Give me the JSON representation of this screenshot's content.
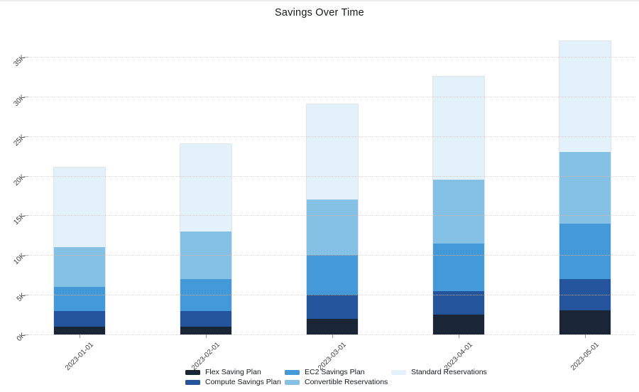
{
  "title": "Savings Over Time",
  "chart_data": {
    "type": "bar",
    "stacked": true,
    "title": "Savings Over Time",
    "categories": [
      "2023-01-01",
      "2023-02-01",
      "2023-03-01",
      "2023-04-01",
      "2023-05-01"
    ],
    "series": [
      {
        "name": "Flex Saving Plan",
        "color": "#1a2536",
        "values": [
          1000,
          1000,
          2000,
          2500,
          3000
        ]
      },
      {
        "name": "Compute Savings Plan",
        "color": "#24549c",
        "values": [
          2000,
          2000,
          3000,
          3000,
          4000
        ]
      },
      {
        "name": "EC2 Savings Plan",
        "color": "#449ad8",
        "values": [
          3000,
          4000,
          5000,
          6000,
          7000
        ]
      },
      {
        "name": "Convertible Reservations",
        "color": "#85c1e4",
        "values": [
          5000,
          6000,
          7000,
          8000,
          9000
        ]
      },
      {
        "name": "Standard Reservations",
        "color": "#e3f1fb",
        "values": [
          10000,
          11000,
          12000,
          13000,
          14000
        ]
      }
    ],
    "totals": [
      21000,
      24000,
      29000,
      32500,
      37000
    ],
    "y_axis": {
      "ticks": [
        "0K",
        "5K",
        "10K",
        "15K",
        "20K",
        "25K",
        "30K",
        "35K"
      ],
      "tick_values": [
        0,
        5000,
        10000,
        15000,
        20000,
        25000,
        30000,
        35000
      ],
      "max": 35000
    },
    "xlabel": "",
    "ylabel": "",
    "grid": "horizontal-dotted",
    "legend_position": "bottom"
  }
}
